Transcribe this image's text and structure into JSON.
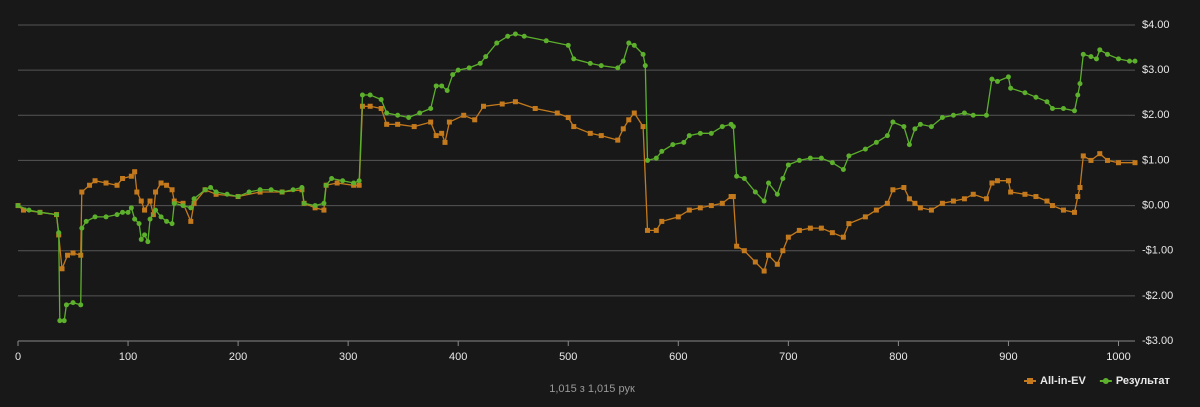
{
  "chart_data": {
    "type": "line",
    "footer": "1,015 з 1,015 рук",
    "xlim": [
      0,
      1015
    ],
    "xticks": [
      0,
      100,
      200,
      300,
      400,
      500,
      600,
      700,
      800,
      900,
      1000
    ],
    "ylim": [
      -3,
      4
    ],
    "yticks": [
      {
        "value": -3,
        "label": "-$3.00"
      },
      {
        "value": -2,
        "label": "-$2.00"
      },
      {
        "value": -1,
        "label": "-$1.00"
      },
      {
        "value": 0,
        "label": "$0.00"
      },
      {
        "value": 1,
        "label": "$1.00"
      },
      {
        "value": 2,
        "label": "$2.00"
      },
      {
        "value": 3,
        "label": "$3.00"
      },
      {
        "value": 4,
        "label": "$4.00"
      }
    ],
    "grid": true,
    "legend": "bottom-right",
    "series": [
      {
        "name": "All-in-EV",
        "color": "#c47a1c",
        "marker": "square",
        "x": [
          0,
          5,
          20,
          35,
          37,
          40,
          45,
          50,
          57,
          58,
          65,
          70,
          80,
          90,
          95,
          103,
          106,
          108,
          112,
          115,
          120,
          123,
          125,
          130,
          135,
          140,
          142,
          150,
          157,
          160,
          170,
          180,
          200,
          220,
          240,
          258,
          260,
          270,
          278,
          280,
          290,
          305,
          310,
          313,
          320,
          330,
          335,
          345,
          360,
          375,
          380,
          385,
          388,
          392,
          405,
          415,
          423,
          440,
          452,
          470,
          490,
          500,
          505,
          520,
          530,
          545,
          550,
          555,
          560,
          568,
          572,
          580,
          585,
          600,
          610,
          620,
          630,
          640,
          648,
          650,
          653,
          660,
          670,
          678,
          682,
          690,
          695,
          700,
          710,
          720,
          730,
          740,
          750,
          755,
          770,
          780,
          790,
          795,
          805,
          810,
          815,
          820,
          830,
          840,
          850,
          860,
          868,
          880,
          885,
          890,
          900,
          902,
          915,
          925,
          935,
          940,
          950,
          960,
          963,
          965,
          968,
          975,
          983,
          990,
          1000,
          1015
        ],
        "values": [
          0,
          -0.1,
          -0.15,
          -0.2,
          -0.65,
          -1.4,
          -1.1,
          -1.05,
          -1.1,
          0.3,
          0.45,
          0.55,
          0.5,
          0.45,
          0.6,
          0.65,
          0.75,
          0.3,
          0.1,
          -0.1,
          0.1,
          -0.2,
          0.3,
          0.5,
          0.45,
          0.35,
          0.1,
          0.05,
          -0.35,
          0.05,
          0.35,
          0.25,
          0.2,
          0.3,
          0.3,
          0.35,
          0.05,
          -0.05,
          -0.1,
          0.45,
          0.5,
          0.45,
          0.45,
          2.2,
          2.2,
          2.15,
          1.8,
          1.8,
          1.75,
          1.85,
          1.55,
          1.6,
          1.4,
          1.85,
          2.0,
          1.9,
          2.2,
          2.25,
          2.3,
          2.15,
          2.05,
          1.95,
          1.75,
          1.6,
          1.55,
          1.45,
          1.7,
          1.9,
          2.05,
          1.75,
          -0.55,
          -0.55,
          -0.35,
          -0.25,
          -0.1,
          -0.05,
          0,
          0.05,
          0.2,
          0.2,
          -0.9,
          -1.0,
          -1.25,
          -1.45,
          -1.1,
          -1.3,
          -1.0,
          -0.7,
          -0.55,
          -0.5,
          -0.5,
          -0.6,
          -0.7,
          -0.4,
          -0.25,
          -0.1,
          0.05,
          0.35,
          0.4,
          0.15,
          0.05,
          -0.05,
          -0.1,
          0.05,
          0.1,
          0.15,
          0.25,
          0.15,
          0.5,
          0.55,
          0.55,
          0.3,
          0.25,
          0.2,
          0.1,
          0,
          -0.1,
          -0.15,
          0.2,
          0.4,
          1.1,
          1.0,
          1.15,
          1.0,
          0.95,
          0.95
        ]
      },
      {
        "name": "Результат",
        "color": "#5cb02c",
        "marker": "circle",
        "x": [
          0,
          10,
          20,
          35,
          37,
          38,
          42,
          44,
          50,
          57,
          58,
          62,
          70,
          80,
          90,
          95,
          100,
          103,
          106,
          110,
          112,
          115,
          118,
          120,
          125,
          130,
          135,
          140,
          142,
          150,
          157,
          160,
          170,
          175,
          180,
          190,
          200,
          210,
          220,
          230,
          240,
          250,
          258,
          260,
          270,
          278,
          280,
          285,
          295,
          305,
          310,
          313,
          320,
          330,
          335,
          345,
          355,
          365,
          375,
          380,
          385,
          390,
          395,
          400,
          410,
          420,
          425,
          435,
          445,
          452,
          460,
          480,
          500,
          505,
          520,
          530,
          545,
          550,
          555,
          560,
          568,
          570,
          572,
          580,
          585,
          595,
          605,
          610,
          620,
          630,
          640,
          648,
          650,
          653,
          660,
          670,
          678,
          682,
          690,
          695,
          700,
          710,
          720,
          730,
          740,
          750,
          755,
          770,
          780,
          790,
          795,
          805,
          810,
          815,
          820,
          830,
          840,
          850,
          860,
          868,
          880,
          885,
          890,
          900,
          902,
          915,
          925,
          935,
          940,
          950,
          960,
          963,
          965,
          968,
          975,
          980,
          983,
          990,
          1000,
          1010,
          1015
        ],
        "values": [
          0,
          -0.1,
          -0.15,
          -0.2,
          -0.6,
          -2.55,
          -2.55,
          -2.2,
          -2.15,
          -2.2,
          -0.5,
          -0.35,
          -0.25,
          -0.25,
          -0.2,
          -0.15,
          -0.15,
          -0.05,
          -0.3,
          -0.4,
          -0.75,
          -0.65,
          -0.8,
          -0.3,
          -0.1,
          -0.25,
          -0.35,
          -0.4,
          0.05,
          0,
          -0.05,
          0.15,
          0.35,
          0.4,
          0.3,
          0.25,
          0.2,
          0.3,
          0.35,
          0.35,
          0.3,
          0.35,
          0.4,
          0.05,
          0,
          0.05,
          0.45,
          0.6,
          0.55,
          0.5,
          0.55,
          2.45,
          2.45,
          2.35,
          2.05,
          2.0,
          1.95,
          2.05,
          2.15,
          2.65,
          2.65,
          2.55,
          2.9,
          3.0,
          3.05,
          3.15,
          3.3,
          3.6,
          3.75,
          3.8,
          3.75,
          3.65,
          3.55,
          3.25,
          3.15,
          3.1,
          3.05,
          3.2,
          3.6,
          3.55,
          3.35,
          3.1,
          1.0,
          1.05,
          1.2,
          1.35,
          1.4,
          1.55,
          1.6,
          1.6,
          1.75,
          1.8,
          1.75,
          0.65,
          0.6,
          0.3,
          0.1,
          0.5,
          0.25,
          0.6,
          0.9,
          1.0,
          1.05,
          1.05,
          0.95,
          0.8,
          1.1,
          1.25,
          1.4,
          1.55,
          1.85,
          1.75,
          1.35,
          1.7,
          1.8,
          1.75,
          1.95,
          2.0,
          2.05,
          2.0,
          2.0,
          2.8,
          2.75,
          2.85,
          2.6,
          2.5,
          2.4,
          2.3,
          2.15,
          2.15,
          2.1,
          2.45,
          2.7,
          3.35,
          3.3,
          3.25,
          3.45,
          3.35,
          3.25,
          3.2,
          3.2
        ]
      }
    ]
  }
}
